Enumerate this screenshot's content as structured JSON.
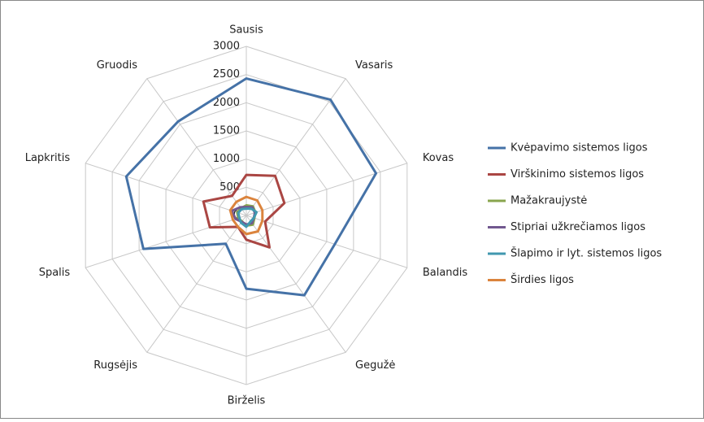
{
  "chart_data": {
    "type": "radar",
    "categories": [
      "Sausis",
      "Vasaris",
      "Kovas",
      "Balandis",
      "Gegužė",
      "Birželis",
      "Rugsėjis",
      "Spalis",
      "Lapkritis",
      "Gruodis"
    ],
    "ylim": [
      0,
      3000
    ],
    "yticks": [
      0,
      500,
      1000,
      1500,
      2000,
      2500,
      3000
    ],
    "grid": true,
    "legend": "right",
    "series": [
      {
        "name": "Kvėpavimo sistemos ligos",
        "color": "#4572a7",
        "values": [
          2430,
          2540,
          2420,
          1650,
          1750,
          1300,
          620,
          1920,
          2240,
          2060
        ]
      },
      {
        "name": "Virškinimo sistemos ligos",
        "color": "#aa4643",
        "values": [
          720,
          870,
          710,
          350,
          700,
          430,
          250,
          680,
          800,
          430
        ]
      },
      {
        "name": "Mažakraujystė",
        "color": "#89a54e",
        "values": [
          180,
          200,
          170,
          150,
          200,
          180,
          130,
          150,
          170,
          160
        ]
      },
      {
        "name": "Stipriai užkrečiamos ligos",
        "color": "#71588f",
        "values": [
          150,
          180,
          160,
          140,
          170,
          160,
          140,
          200,
          270,
          180
        ]
      },
      {
        "name": "Šlapimo ir lyt. sistemos ligos",
        "color": "#4198af",
        "values": [
          120,
          150,
          190,
          140,
          130,
          200,
          160,
          130,
          150,
          140
        ]
      },
      {
        "name": "Širdies ligos",
        "color": "#db843d",
        "values": [
          330,
          330,
          300,
          300,
          350,
          330,
          250,
          250,
          300,
          300
        ]
      }
    ]
  }
}
